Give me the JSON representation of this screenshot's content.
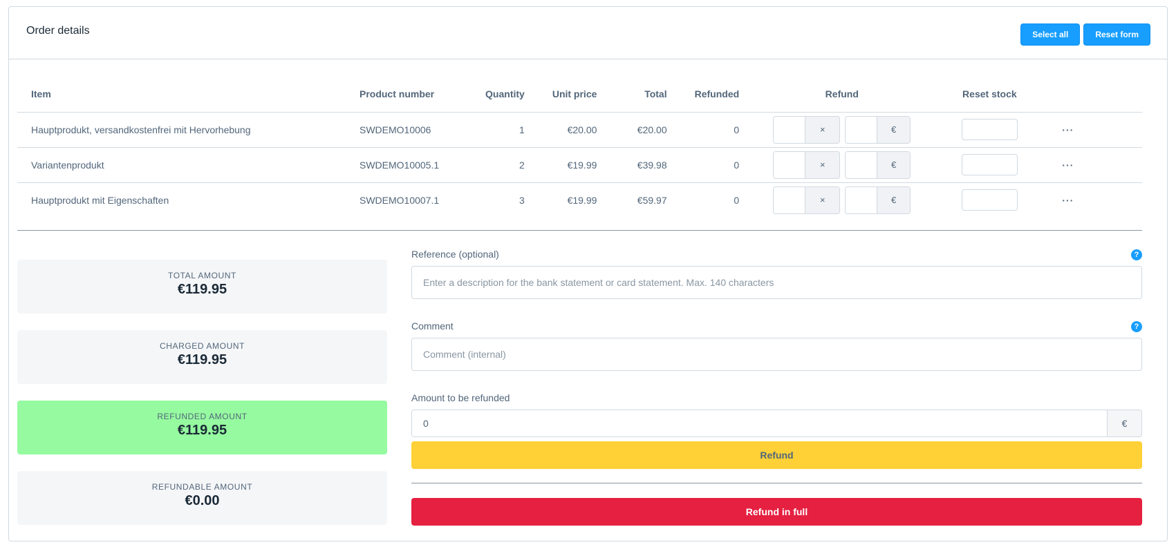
{
  "header": {
    "title": "Order details",
    "select_all_label": "Select all",
    "reset_form_label": "Reset form"
  },
  "table": {
    "columns": {
      "item": "Item",
      "product_number": "Product number",
      "quantity": "Quantity",
      "unit_price": "Unit price",
      "total": "Total",
      "refunded": "Refunded",
      "refund": "Refund",
      "reset_stock": "Reset stock"
    },
    "rows": [
      {
        "item": "Hauptprodukt, versandkostenfrei mit Hervorhebung",
        "product_number": "SWDEMO10006",
        "quantity": "1",
        "unit_price": "€20.00",
        "total": "€20.00",
        "refunded": "0",
        "times": "×",
        "currency": "€",
        "more": "···"
      },
      {
        "item": "Variantenprodukt",
        "product_number": "SWDEMO10005.1",
        "quantity": "2",
        "unit_price": "€19.99",
        "total": "€39.98",
        "refunded": "0",
        "times": "×",
        "currency": "€",
        "more": "···"
      },
      {
        "item": "Hauptprodukt mit Eigenschaften",
        "product_number": "SWDEMO10007.1",
        "quantity": "3",
        "unit_price": "€19.99",
        "total": "€59.97",
        "refunded": "0",
        "times": "×",
        "currency": "€",
        "more": "···"
      }
    ]
  },
  "summary": {
    "total": {
      "label": "TOTAL AMOUNT",
      "value": "€119.95"
    },
    "charged": {
      "label": "CHARGED AMOUNT",
      "value": "€119.95"
    },
    "refunded": {
      "label": "REFUNDED AMOUNT",
      "value": "€119.95"
    },
    "refundable": {
      "label": "REFUNDABLE AMOUNT",
      "value": "€0.00"
    }
  },
  "form": {
    "reference_label": "Reference (optional)",
    "reference_placeholder": "Enter a description for the bank statement or card statement. Max. 140 characters",
    "comment_label": "Comment",
    "comment_placeholder": "Comment (internal)",
    "amount_label": "Amount to be refunded",
    "amount_value": "0",
    "amount_currency": "€",
    "help_glyph": "?",
    "refund_label": "Refund",
    "refund_full_label": "Refund in full"
  },
  "colors": {
    "primary": "#189eff",
    "refund_button": "#ffd136",
    "refund_full_button": "#e52040",
    "refunded_highlight": "#96faa0"
  }
}
